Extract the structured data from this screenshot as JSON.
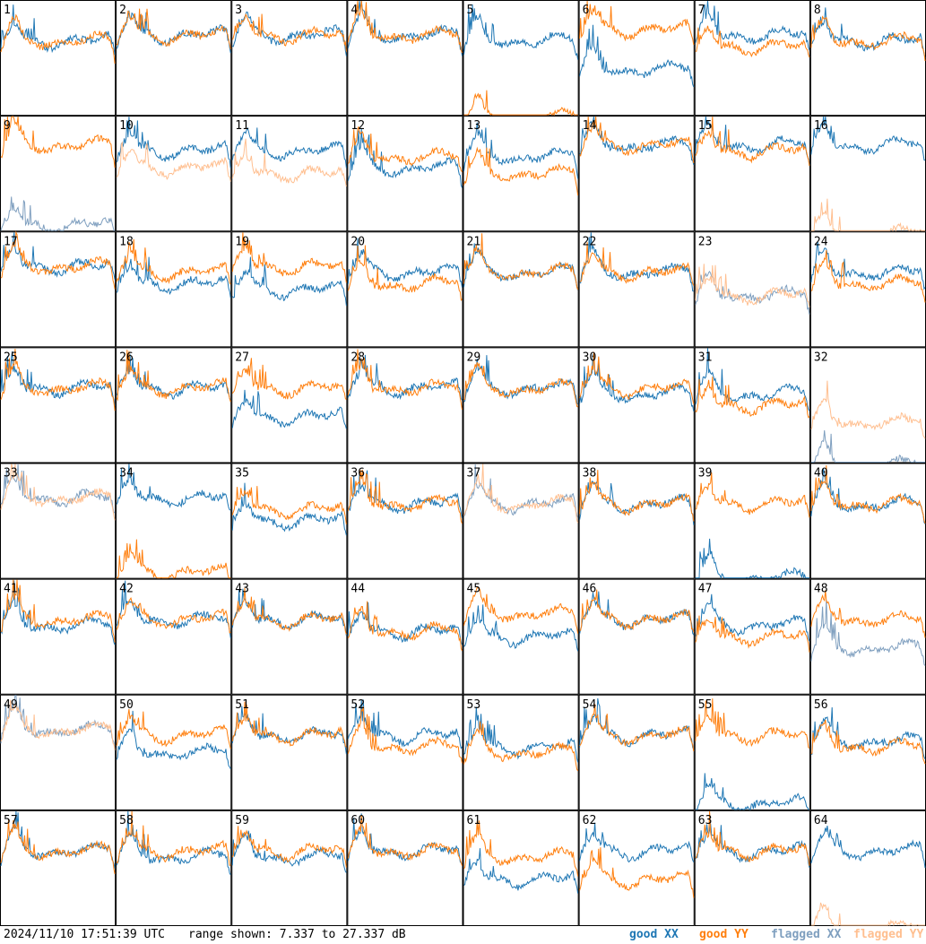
{
  "footer": {
    "timestamp": "2024/11/10 17:51:39 UTC",
    "range_text": "range shown: 7.337 to 27.337 dB"
  },
  "legend": {
    "good_xx": "good XX",
    "good_yy": "good YY",
    "flagged_xx": "flagged XX",
    "flagged_yy": "flagged YY"
  },
  "colors": {
    "good_xx": "#1f77b4",
    "good_yy": "#ff7f0e",
    "flagged_xx": "#7f9fbf",
    "flagged_yy": "#ffbf90"
  },
  "chart_data": {
    "type": "line",
    "layout": "8x8 grid of antenna spectra",
    "ylim": [
      7.337,
      27.337
    ],
    "units": "dB",
    "panels": [
      {
        "id": "1",
        "xx": "good",
        "yy": "good",
        "xx_level": 21,
        "yy_level": 21
      },
      {
        "id": "2",
        "xx": "good",
        "yy": "good",
        "xx_level": 22,
        "yy_level": 22
      },
      {
        "id": "3",
        "xx": "good",
        "yy": "good",
        "xx_level": 22,
        "yy_level": 22
      },
      {
        "id": "4",
        "xx": "good",
        "yy": "good",
        "xx_level": 22,
        "yy_level": 22
      },
      {
        "id": "5",
        "xx": "good",
        "yy": "good",
        "xx_level": 21,
        "yy_level": 7.5
      },
      {
        "id": "6",
        "xx": "good",
        "yy": "good",
        "xx_level": 16,
        "yy_level": 23
      },
      {
        "id": "7",
        "xx": "good",
        "yy": "good",
        "xx_level": 22,
        "yy_level": 20
      },
      {
        "id": "8",
        "xx": "good",
        "yy": "good",
        "xx_level": 21,
        "yy_level": 21
      },
      {
        "id": "9",
        "xx": "flagged",
        "yy": "good",
        "xx_level": 9,
        "yy_level": 23
      },
      {
        "id": "10",
        "xx": "good",
        "yy": "flagged",
        "xx_level": 22,
        "yy_level": 19
      },
      {
        "id": "11",
        "xx": "good",
        "yy": "flagged",
        "xx_level": 22,
        "yy_level": 18
      },
      {
        "id": "12",
        "xx": "good",
        "yy": "good",
        "xx_level": 19,
        "yy_level": 21
      },
      {
        "id": "13",
        "xx": "good",
        "yy": "good",
        "xx_level": 21,
        "yy_level": 18
      },
      {
        "id": "14",
        "xx": "good",
        "yy": "good",
        "xx_level": 23,
        "yy_level": 23
      },
      {
        "id": "15",
        "xx": "good",
        "yy": "good",
        "xx_level": 23,
        "yy_level": 22
      },
      {
        "id": "16",
        "xx": "good",
        "yy": "flagged",
        "xx_level": 23,
        "yy_level": 7.5
      },
      {
        "id": "17",
        "xx": "good",
        "yy": "good",
        "xx_level": 22,
        "yy_level": 22
      },
      {
        "id": "18",
        "xx": "good",
        "yy": "good",
        "xx_level": 19,
        "yy_level": 21
      },
      {
        "id": "19",
        "xx": "good",
        "yy": "good",
        "xx_level": 18,
        "yy_level": 22
      },
      {
        "id": "20",
        "xx": "good",
        "yy": "good",
        "xx_level": 21,
        "yy_level": 19
      },
      {
        "id": "21",
        "xx": "good",
        "yy": "good",
        "xx_level": 21,
        "yy_level": 21
      },
      {
        "id": "22",
        "xx": "good",
        "yy": "good",
        "xx_level": 21,
        "yy_level": 21
      },
      {
        "id": "23",
        "xx": "flagged",
        "yy": "flagged",
        "xx_level": 17,
        "yy_level": 17
      },
      {
        "id": "24",
        "xx": "good",
        "yy": "good",
        "xx_level": 21,
        "yy_level": 19
      },
      {
        "id": "25",
        "xx": "good",
        "yy": "good",
        "xx_level": 21,
        "yy_level": 21
      },
      {
        "id": "26",
        "xx": "good",
        "yy": "good",
        "xx_level": 21,
        "yy_level": 21
      },
      {
        "id": "27",
        "xx": "good",
        "yy": "good",
        "xx_level": 16,
        "yy_level": 21
      },
      {
        "id": "28",
        "xx": "good",
        "yy": "good",
        "xx_level": 21,
        "yy_level": 21
      },
      {
        "id": "29",
        "xx": "good",
        "yy": "good",
        "xx_level": 21,
        "yy_level": 21
      },
      {
        "id": "30",
        "xx": "good",
        "yy": "good",
        "xx_level": 20,
        "yy_level": 21
      },
      {
        "id": "31",
        "xx": "good",
        "yy": "good",
        "xx_level": 20,
        "yy_level": 18
      },
      {
        "id": "32",
        "xx": "flagged",
        "yy": "flagged",
        "xx_level": 7.5,
        "yy_level": 15
      },
      {
        "id": "33",
        "xx": "flagged",
        "yy": "flagged",
        "xx_level": 22,
        "yy_level": 22
      },
      {
        "id": "34",
        "xx": "good",
        "yy": "good",
        "xx_level": 22,
        "yy_level": 9
      },
      {
        "id": "35",
        "xx": "good",
        "yy": "good",
        "xx_level": 18,
        "yy_level": 20
      },
      {
        "id": "36",
        "xx": "good",
        "yy": "good",
        "xx_level": 21,
        "yy_level": 21
      },
      {
        "id": "37",
        "xx": "flagged",
        "yy": "flagged",
        "xx_level": 21,
        "yy_level": 21
      },
      {
        "id": "38",
        "xx": "good",
        "yy": "good",
        "xx_level": 21,
        "yy_level": 21
      },
      {
        "id": "39",
        "xx": "good",
        "yy": "good",
        "xx_level": 8,
        "yy_level": 21
      },
      {
        "id": "40",
        "xx": "good",
        "yy": "good",
        "xx_level": 21,
        "yy_level": 21
      },
      {
        "id": "41",
        "xx": "good",
        "yy": "good",
        "xx_level": 20,
        "yy_level": 21
      },
      {
        "id": "42",
        "xx": "good",
        "yy": "good",
        "xx_level": 21,
        "yy_level": 21
      },
      {
        "id": "43",
        "xx": "good",
        "yy": "good",
        "xx_level": 21,
        "yy_level": 21
      },
      {
        "id": "44",
        "xx": "good",
        "yy": "good",
        "xx_level": 19,
        "yy_level": 19
      },
      {
        "id": "45",
        "xx": "good",
        "yy": "good",
        "xx_level": 18,
        "yy_level": 22
      },
      {
        "id": "46",
        "xx": "good",
        "yy": "good",
        "xx_level": 21,
        "yy_level": 21
      },
      {
        "id": "47",
        "xx": "good",
        "yy": "good",
        "xx_level": 20,
        "yy_level": 18
      },
      {
        "id": "48",
        "xx": "flagged",
        "yy": "good",
        "xx_level": 16,
        "yy_level": 21
      },
      {
        "id": "49",
        "xx": "flagged",
        "yy": "flagged",
        "xx_level": 22,
        "yy_level": 22
      },
      {
        "id": "50",
        "xx": "good",
        "yy": "good",
        "xx_level": 18,
        "yy_level": 21
      },
      {
        "id": "51",
        "xx": "good",
        "yy": "good",
        "xx_level": 21,
        "yy_level": 21
      },
      {
        "id": "52",
        "xx": "good",
        "yy": "good",
        "xx_level": 21,
        "yy_level": 19
      },
      {
        "id": "53",
        "xx": "good",
        "yy": "good",
        "xx_level": 19,
        "yy_level": 18
      },
      {
        "id": "54",
        "xx": "good",
        "yy": "good",
        "xx_level": 21,
        "yy_level": 21
      },
      {
        "id": "55",
        "xx": "good",
        "yy": "good",
        "xx_level": 9,
        "yy_level": 21
      },
      {
        "id": "56",
        "xx": "good",
        "yy": "good",
        "xx_level": 20,
        "yy_level": 19
      },
      {
        "id": "57",
        "xx": "good",
        "yy": "good",
        "xx_level": 21,
        "yy_level": 21
      },
      {
        "id": "58",
        "xx": "good",
        "yy": "good",
        "xx_level": 20,
        "yy_level": 21
      },
      {
        "id": "59",
        "xx": "good",
        "yy": "good",
        "xx_level": 20,
        "yy_level": 21
      },
      {
        "id": "60",
        "xx": "good",
        "yy": "good",
        "xx_level": 21,
        "yy_level": 21
      },
      {
        "id": "61",
        "xx": "good",
        "yy": "good",
        "xx_level": 16,
        "yy_level": 20
      },
      {
        "id": "62",
        "xx": "good",
        "yy": "good",
        "xx_level": 21,
        "yy_level": 16
      },
      {
        "id": "63",
        "xx": "good",
        "yy": "good",
        "xx_level": 21,
        "yy_level": 21
      },
      {
        "id": "64",
        "xx": "good",
        "yy": "flagged",
        "xx_level": 21,
        "yy_level": 7.5
      }
    ]
  }
}
